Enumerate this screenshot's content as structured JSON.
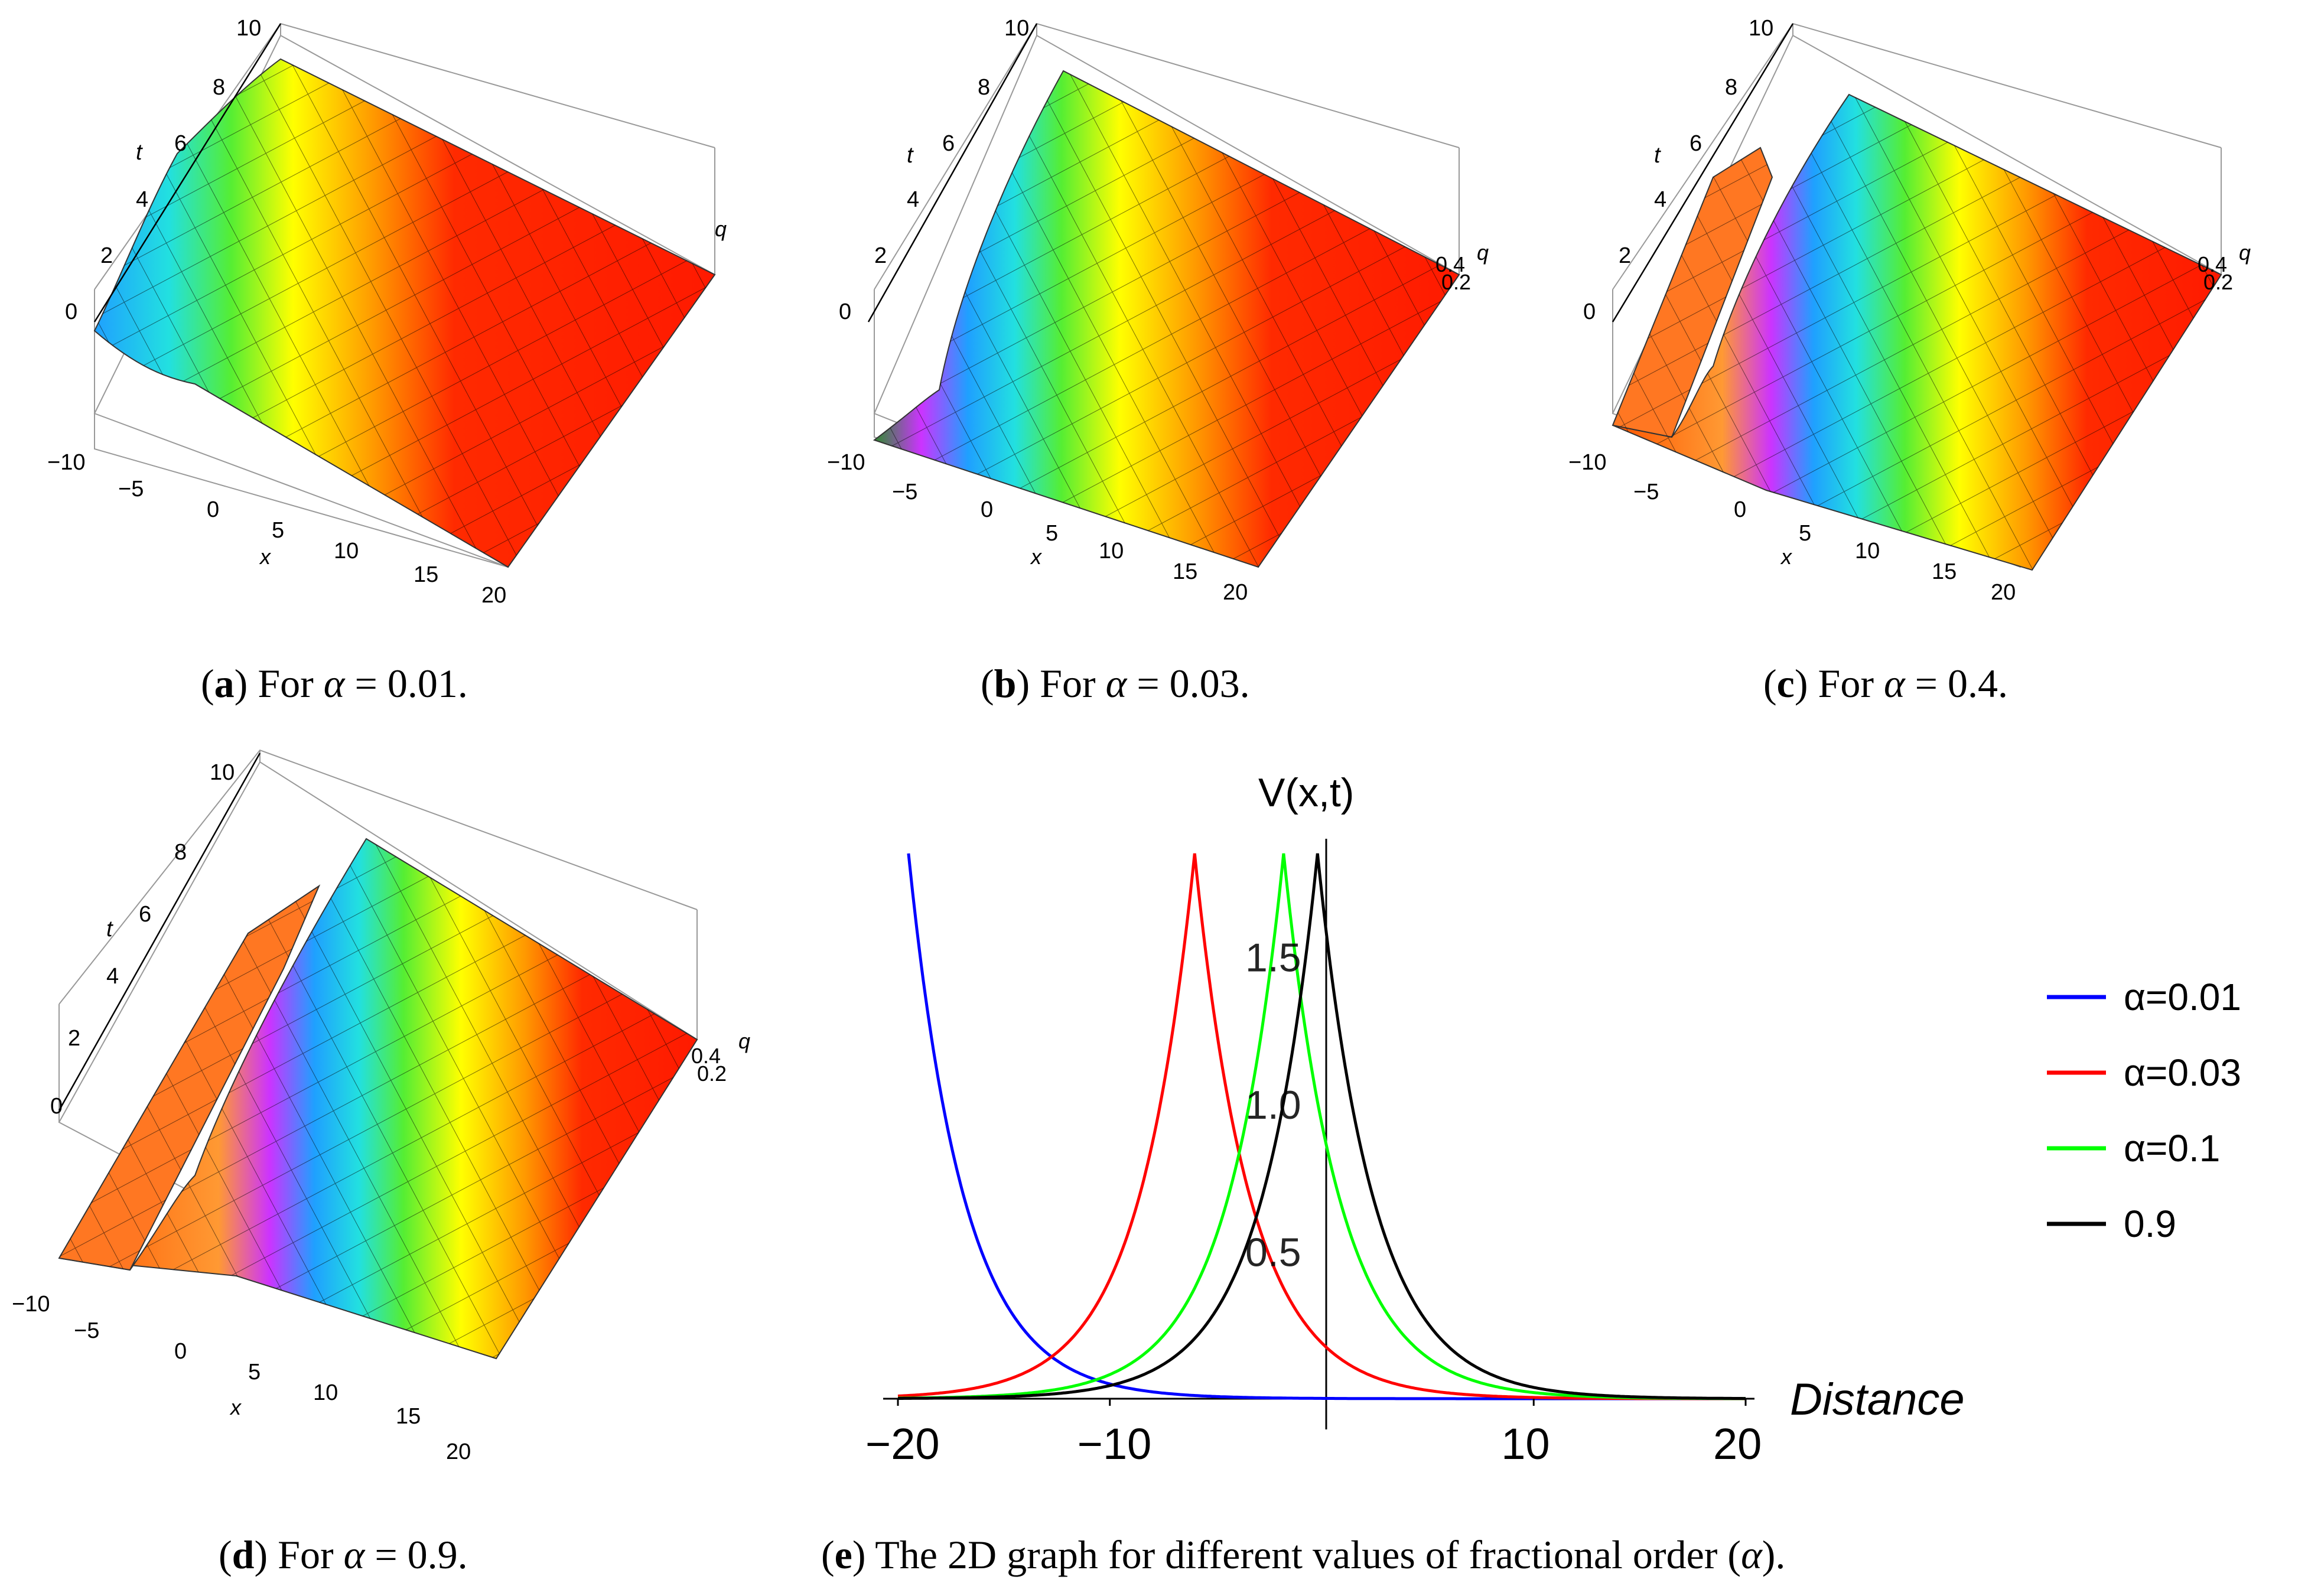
{
  "panels": [
    {
      "id": "a",
      "letter": "a",
      "pre": "For",
      "alpha_symbol": "α",
      "eq": "= 0.01.",
      "ticks": {
        "t": [
          "0",
          "2",
          "4",
          "6",
          "8",
          "10"
        ],
        "x": [
          "−10",
          "−5",
          "0",
          "5",
          "10",
          "15",
          "20"
        ]
      },
      "axis_x": "x",
      "axis_t": "t",
      "axis_q": "q",
      "q_ticks": []
    },
    {
      "id": "b",
      "letter": "b",
      "pre": "For",
      "alpha_symbol": "α",
      "eq": "= 0.03.",
      "ticks": {
        "t": [
          "0",
          "2",
          "4",
          "6",
          "8",
          "10"
        ],
        "x": [
          "−10",
          "−5",
          "0",
          "5",
          "10",
          "15",
          "20"
        ]
      },
      "axis_x": "x",
      "axis_t": "t",
      "axis_q": "q",
      "q_ticks": [
        "0.4",
        "0.2"
      ]
    },
    {
      "id": "c",
      "letter": "c",
      "pre": "For",
      "alpha_symbol": "α",
      "eq": "= 0.4.",
      "ticks": {
        "t": [
          "0",
          "2",
          "4",
          "6",
          "8",
          "10"
        ],
        "x": [
          "−10",
          "−5",
          "0",
          "5",
          "10",
          "15",
          "20"
        ]
      },
      "axis_x": "x",
      "axis_t": "t",
      "axis_q": "q",
      "q_ticks": [
        "0.4",
        "0.2"
      ]
    },
    {
      "id": "d",
      "letter": "d",
      "pre": "For",
      "alpha_symbol": "α",
      "eq": "= 0.9.",
      "ticks": {
        "t": [
          "0",
          "2",
          "4",
          "6",
          "8",
          "10"
        ],
        "x": [
          "−10",
          "−5",
          "0",
          "5",
          "10",
          "15",
          "20"
        ]
      },
      "axis_x": "x",
      "axis_t": "t",
      "axis_q": "q",
      "q_ticks": [
        "0.4",
        "0.2"
      ]
    }
  ],
  "caption_e": {
    "letter": "e",
    "text": "The 2D graph for different values of fractional order",
    "alpha_symbol": "α",
    "close": ")."
  },
  "chart_data": {
    "type": "line",
    "title": "",
    "ylabel": "V(x,t)",
    "xlabel": "Distance",
    "xlim": [
      -20,
      20
    ],
    "ylim": [
      0,
      1.9
    ],
    "x_ticks": [
      "−20",
      "−10",
      "10",
      "20"
    ],
    "x_tick_values": [
      -20,
      -10,
      10,
      20
    ],
    "y_ticks": [
      "0.5",
      "1.0",
      "1.5"
    ],
    "y_tick_values": [
      0.5,
      1.0,
      1.5
    ],
    "legend_position": "right",
    "series": [
      {
        "name": "α=0.01",
        "color": "#0000ff",
        "peak_x": -19.5,
        "peak_y": 1.85,
        "decay": 0.38
      },
      {
        "name": "α=0.03",
        "color": "#ff0000",
        "peak_x": -6,
        "peak_y": 1.85,
        "decay": 0.38
      },
      {
        "name": "α=0.1",
        "color": "#00ff00",
        "peak_x": -1.8,
        "peak_y": 1.85,
        "decay": 0.38
      },
      {
        "name": "0.9",
        "color": "#000000",
        "peak_x": -0.2,
        "peak_y": 1.85,
        "decay": 0.38
      }
    ]
  }
}
